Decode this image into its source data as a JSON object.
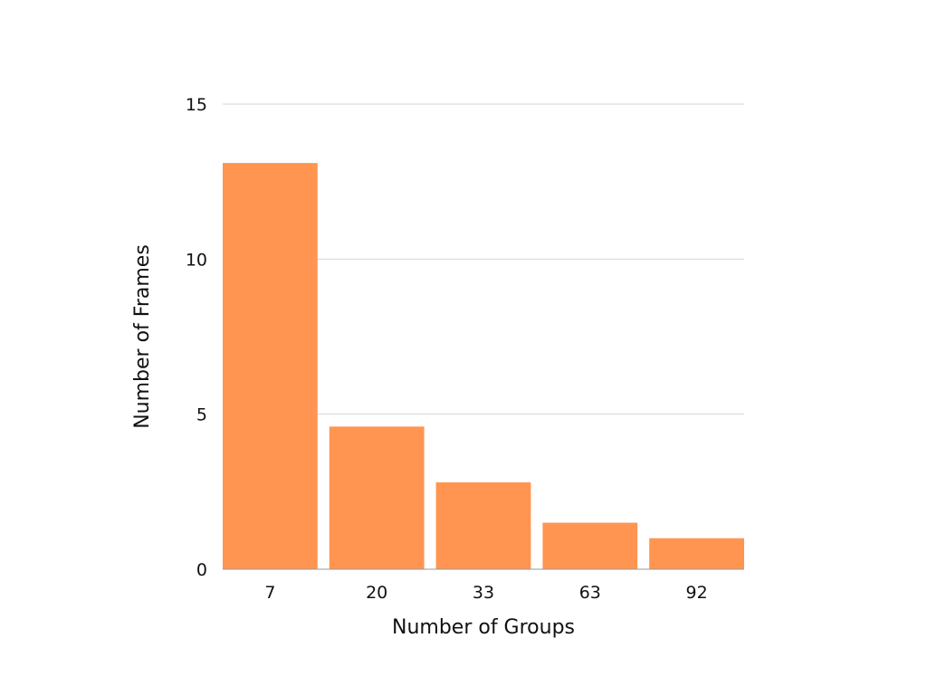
{
  "chart_data": {
    "type": "bar",
    "categories": [
      "7",
      "20",
      "33",
      "63",
      "92"
    ],
    "values": [
      13.1,
      4.6,
      2.8,
      1.5,
      1.0
    ],
    "title": "",
    "xlabel": "Number of Groups",
    "ylabel": "Number of Frames",
    "ylim": [
      0,
      15
    ],
    "yticks": [
      0,
      5,
      10,
      15
    ],
    "grid": true,
    "legend": "none",
    "bar_color": "#ff9550",
    "grid_color": "#d4d4d4"
  }
}
